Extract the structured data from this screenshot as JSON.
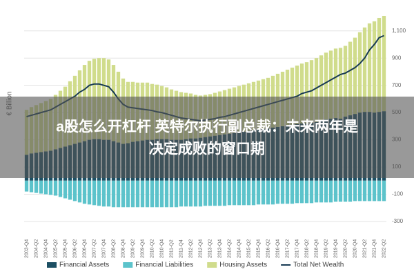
{
  "chart_data": {
    "type": "stacked-bar-line",
    "y_label": "€ Billion",
    "categories": [
      "2003-Q4",
      null,
      "2004-Q2",
      null,
      "2004-Q4",
      null,
      "2005-Q2",
      null,
      "2005-Q4",
      null,
      "2006-Q2",
      null,
      "2006-Q4",
      null,
      "2007-Q2",
      null,
      "2007-Q4",
      null,
      "2008-Q2",
      null,
      "2008-Q4",
      null,
      "2009-Q2",
      null,
      "2009-Q4",
      null,
      "2010-Q2",
      null,
      "2010-Q4",
      null,
      "2011-Q2",
      null,
      "2011-Q4",
      null,
      "2012-Q2",
      null,
      "2012-Q4",
      null,
      "2013-Q2",
      null,
      "2013-Q4",
      null,
      "2014-Q2",
      null,
      "2014-Q4",
      null,
      "2015-Q2",
      null,
      "2015-Q4",
      null,
      "2016-Q2",
      null,
      "2016-Q4",
      null,
      "2017-Q2",
      null,
      "2017-Q4",
      null,
      "2018-Q2",
      null,
      "2018-Q4",
      null,
      "2019-Q2",
      null,
      "2019-Q4",
      null,
      "2020-Q2",
      null,
      "2020-Q4",
      null,
      "2021-Q2",
      null,
      "2021-Q4",
      null,
      "2022-Q2"
    ],
    "series": [
      {
        "name": "Financial Assets",
        "color": "#1c4f63",
        "kind": "bar",
        "values": [
          190,
          200,
          205,
          210,
          215,
          220,
          230,
          240,
          250,
          260,
          270,
          280,
          290,
          300,
          305,
          305,
          300,
          300,
          290,
          280,
          270,
          275,
          285,
          290,
          295,
          300,
          300,
          305,
          305,
          305,
          300,
          300,
          300,
          305,
          310,
          310,
          315,
          320,
          325,
          330,
          335,
          340,
          345,
          350,
          355,
          360,
          365,
          370,
          375,
          380,
          385,
          390,
          395,
          400,
          405,
          410,
          415,
          420,
          420,
          425,
          430,
          440,
          450,
          455,
          460,
          455,
          470,
          480,
          490,
          500,
          505,
          505,
          500,
          505,
          510
        ]
      },
      {
        "name": "Financial Liabilities",
        "color": "#5cc3cb",
        "kind": "bar",
        "values": [
          -80,
          -85,
          -90,
          -95,
          -100,
          -105,
          -110,
          -120,
          -130,
          -140,
          -150,
          -160,
          -170,
          -175,
          -180,
          -185,
          -190,
          -190,
          -195,
          -195,
          -195,
          -195,
          -195,
          -195,
          -195,
          -195,
          -195,
          -195,
          -195,
          -195,
          -195,
          -195,
          -190,
          -190,
          -190,
          -190,
          -190,
          -185,
          -185,
          -185,
          -185,
          -185,
          -180,
          -180,
          -180,
          -180,
          -180,
          -180,
          -175,
          -175,
          -175,
          -175,
          -170,
          -170,
          -170,
          -170,
          -165,
          -165,
          -165,
          -165,
          -160,
          -160,
          -160,
          -160,
          -155,
          -155,
          -155,
          -155,
          -150,
          -150,
          -150,
          -150,
          -150,
          -150,
          -150
        ]
      },
      {
        "name": "Housing Assets",
        "color": "#d0dc8c",
        "kind": "bar",
        "values": [
          330,
          340,
          350,
          360,
          370,
          380,
          400,
          420,
          440,
          470,
          500,
          530,
          560,
          580,
          590,
          595,
          600,
          590,
          560,
          520,
          480,
          450,
          440,
          430,
          425,
          420,
          410,
          400,
          390,
          380,
          370,
          360,
          350,
          340,
          330,
          320,
          310,
          310,
          310,
          315,
          320,
          325,
          330,
          335,
          340,
          345,
          350,
          355,
          360,
          365,
          370,
          380,
          390,
          400,
          410,
          420,
          430,
          440,
          450,
          460,
          470,
          480,
          490,
          500,
          510,
          520,
          520,
          540,
          560,
          590,
          620,
          650,
          670,
          690,
          700
        ]
      },
      {
        "name": "Total Net Wealth",
        "color": "#173a54",
        "kind": "line",
        "values": [
          470,
          480,
          490,
          500,
          510,
          520,
          540,
          560,
          580,
          600,
          620,
          650,
          670,
          700,
          710,
          710,
          700,
          690,
          650,
          600,
          560,
          540,
          535,
          530,
          525,
          520,
          515,
          505,
          500,
          490,
          480,
          470,
          460,
          455,
          450,
          445,
          440,
          445,
          450,
          455,
          465,
          470,
          480,
          490,
          500,
          510,
          520,
          530,
          540,
          550,
          560,
          570,
          580,
          590,
          600,
          610,
          620,
          640,
          650,
          660,
          680,
          700,
          720,
          740,
          760,
          780,
          790,
          810,
          830,
          860,
          900,
          960,
          1000,
          1050,
          1065
        ]
      }
    ],
    "ylim": [
      -300,
      1200
    ],
    "yticks": [
      -300,
      -100,
      100,
      300,
      500,
      700,
      900,
      {
        "value": 1100,
        "label": "1,100"
      }
    ],
    "grid": true
  },
  "banner": {
    "lines": [
      "a股怎么开杠杆 英特尔执行副总裁：未来两年是",
      "决定成败的窗口期"
    ]
  }
}
